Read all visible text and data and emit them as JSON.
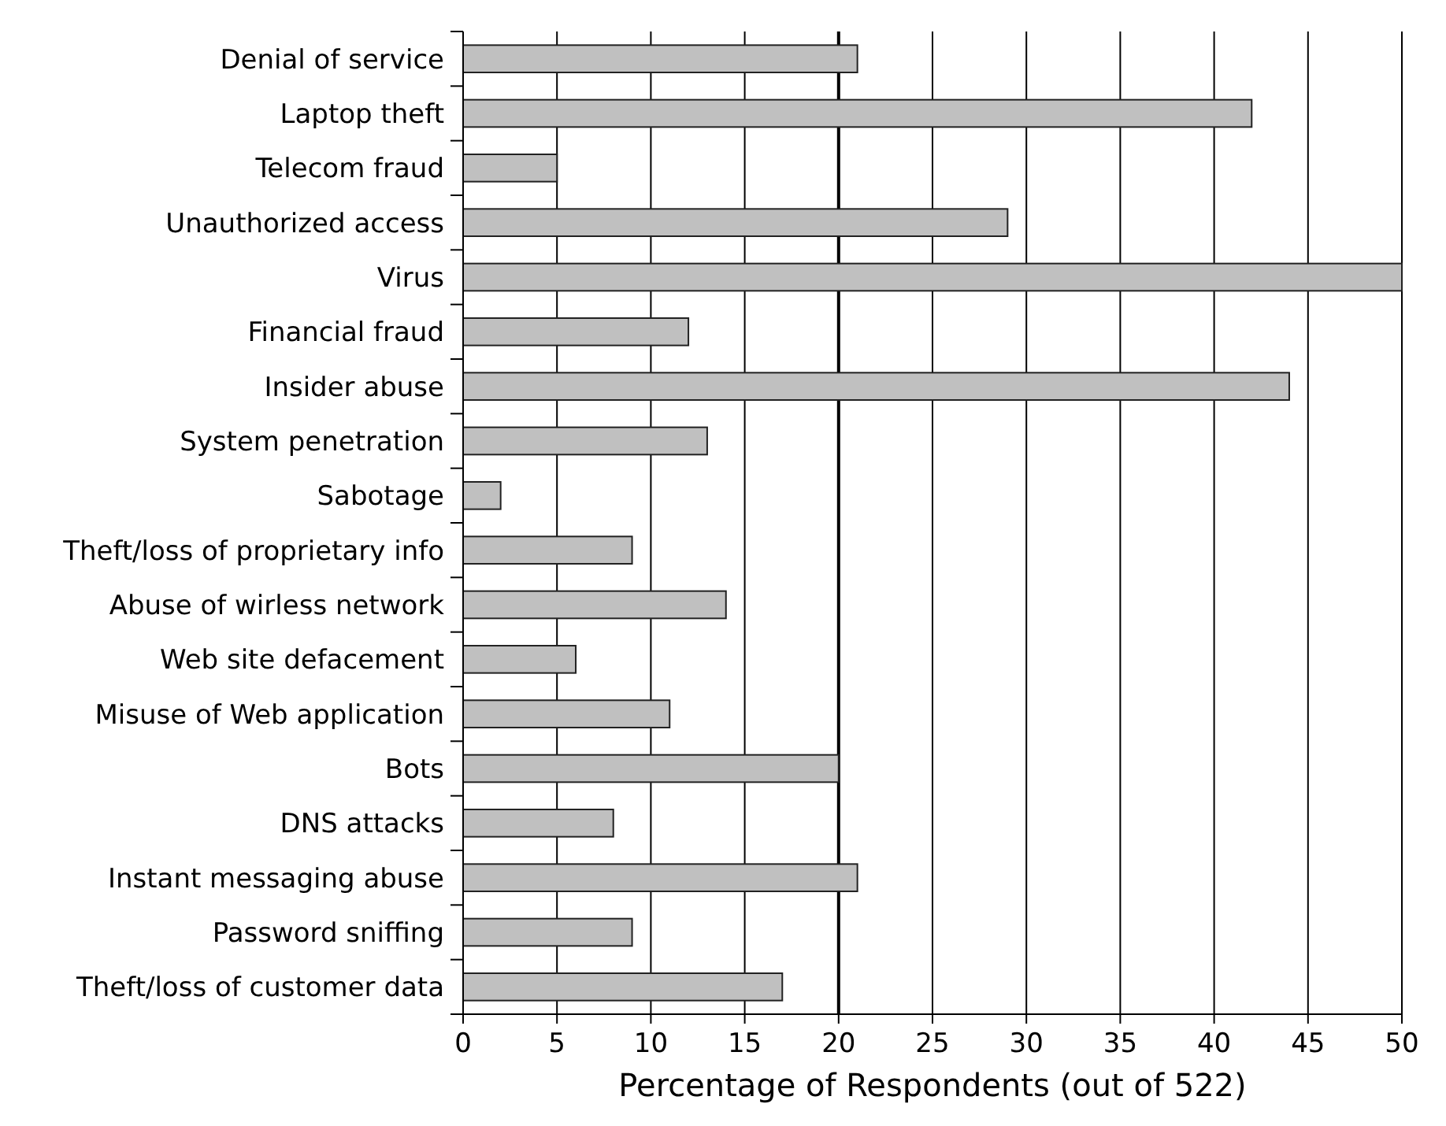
{
  "chart_data": {
    "type": "bar",
    "orientation": "horizontal",
    "xlabel": "Percentage of Respondents (out of 522)",
    "categories": [
      "Denial of service",
      "Laptop theft",
      "Telecom fraud",
      "Unauthorized access",
      "Virus",
      "Financial fraud",
      "Insider abuse",
      "System penetration",
      "Sabotage",
      "Theft/loss of proprietary info",
      "Abuse of wirless network",
      "Web site defacement",
      "Misuse of Web application",
      "Bots",
      "DNS attacks",
      "Instant messaging abuse",
      "Password sniffing",
      "Theft/loss of customer data"
    ],
    "values": [
      21,
      42,
      5,
      29,
      50,
      12,
      44,
      13,
      2,
      9,
      14,
      6,
      11,
      20,
      8,
      21,
      9,
      17
    ],
    "color": "#c0c0c0",
    "xlim": [
      0,
      50
    ],
    "xticks": [
      0,
      5,
      10,
      15,
      20,
      25,
      30,
      35,
      40,
      45,
      50
    ],
    "grid": "x",
    "ref_lines": [
      {
        "axis": "x",
        "value": 20,
        "color": "#000000"
      }
    ]
  }
}
